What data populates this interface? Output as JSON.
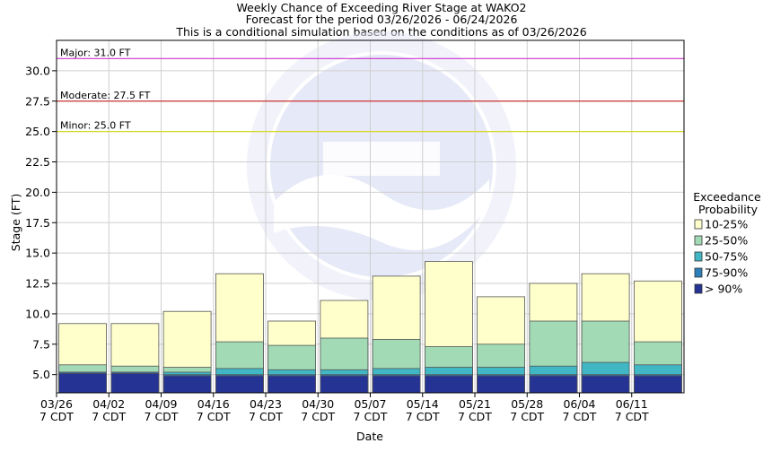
{
  "chart_data": {
    "type": "bar",
    "title": "Weekly Chance of Exceeding River Stage at WAKO2",
    "subtitle_lines": [
      "Forecast for the period 03/26/2026 - 06/24/2026",
      "This is a conditional simulation based on the conditions as of 03/26/2026"
    ],
    "xlabel": "Date",
    "ylabel": "Stage (FT)",
    "ylim": [
      3.5,
      32.5
    ],
    "yticks": [
      5.0,
      7.5,
      10.0,
      12.5,
      15.0,
      17.5,
      20.0,
      22.5,
      25.0,
      27.5,
      30.0
    ],
    "ytick_labels": [
      "5.0",
      "7.5",
      "10.0",
      "12.5",
      "15.0",
      "17.5",
      "20.0",
      "22.5",
      "25.0",
      "27.5",
      "30.0"
    ],
    "categories": [
      "03/26",
      "04/02",
      "04/09",
      "04/16",
      "04/23",
      "04/30",
      "05/07",
      "05/14",
      "05/21",
      "05/28",
      "06/04",
      "06/11"
    ],
    "category_sublabel": "7 CDT",
    "grid": true,
    "thresholds": [
      {
        "label": "Major: 31.0 FT",
        "value": 31.0,
        "color": "#cc33cc"
      },
      {
        "label": "Moderate: 27.5 FT",
        "value": 27.5,
        "color": "#cc3333"
      },
      {
        "label": "Minor: 25.0 FT",
        "value": 25.0,
        "color": "#d8d820"
      }
    ],
    "legend": {
      "title_lines": [
        "Exceedance",
        "Probability"
      ],
      "placement": "right",
      "entries": [
        {
          "label": "10-25%",
          "color": "#ffffcc"
        },
        {
          "label": "25-50%",
          "color": "#a1dab4"
        },
        {
          "label": "50-75%",
          "color": "#41b6c4"
        },
        {
          "label": "75-90%",
          "color": "#2c7fb8"
        },
        {
          "label": "> 90%",
          "color": "#253494"
        }
      ]
    },
    "series": [
      {
        "name": "> 90%",
        "values": [
          5.1,
          5.1,
          4.9,
          4.9,
          4.9,
          4.9,
          4.9,
          4.9,
          4.9,
          4.9,
          4.9,
          4.9
        ]
      },
      {
        "name": "75-90%",
        "values": [
          5.2,
          5.2,
          5.0,
          5.0,
          5.0,
          5.0,
          5.0,
          5.0,
          5.0,
          5.0,
          5.0,
          5.0
        ]
      },
      {
        "name": "50-75%",
        "values": [
          5.2,
          5.2,
          5.2,
          5.5,
          5.4,
          5.4,
          5.5,
          5.6,
          5.6,
          5.7,
          6.0,
          5.8
        ]
      },
      {
        "name": "25-50%",
        "values": [
          5.8,
          5.7,
          5.6,
          7.7,
          7.4,
          8.0,
          7.9,
          7.3,
          7.5,
          9.4,
          9.4,
          7.7
        ]
      },
      {
        "name": "10-25%",
        "values": [
          9.2,
          9.2,
          10.2,
          13.3,
          9.4,
          11.1,
          13.1,
          14.3,
          11.4,
          12.5,
          13.3,
          12.7
        ]
      }
    ]
  }
}
